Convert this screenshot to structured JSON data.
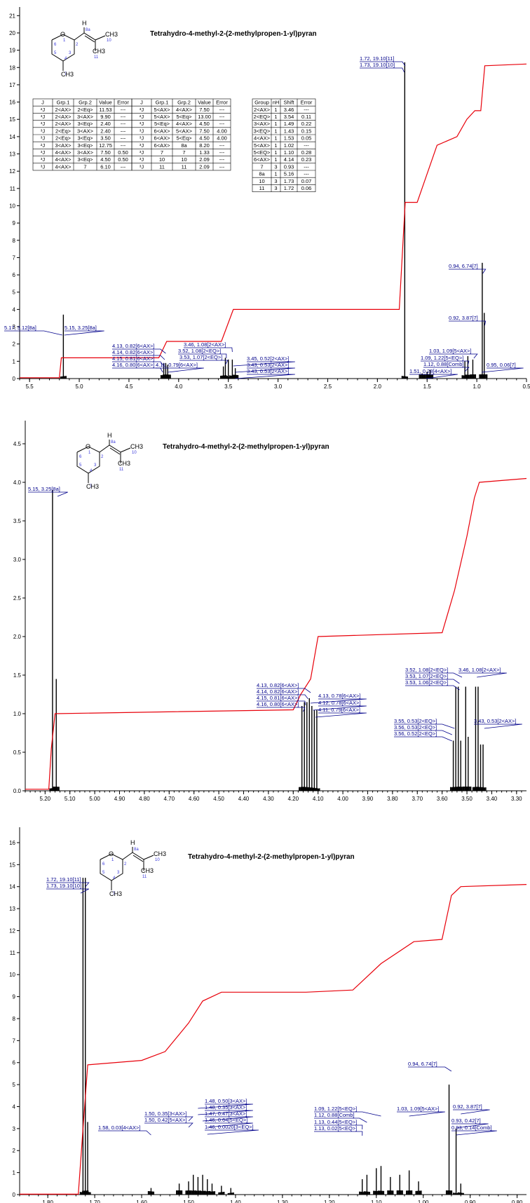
{
  "compound_name": "Tetrahydro-4-methyl-2-(2-methylpropen-1-yl)pyran",
  "molecule": {
    "atom_labels": [
      "O",
      "1",
      "2",
      "3",
      "4",
      "5",
      "6",
      "7",
      "8a",
      "10",
      "11"
    ],
    "group_labels": [
      "H",
      "CH3",
      "CH3",
      "CH3"
    ]
  },
  "chart_data": [
    {
      "type": "line",
      "title": "Tetrahydro-4-methyl-2-(2-methylpropen-1-yl)pyran",
      "xlabel": "",
      "ylabel": "",
      "xlim": [
        5.6,
        0.5
      ],
      "ylim": [
        0,
        21.5
      ],
      "x_ticks": [
        "5.5",
        "5.0",
        "4.5",
        "4.0",
        "3.5",
        "3.0",
        "2.5",
        "2.0",
        "1.5",
        "1.0",
        "0.5"
      ],
      "y_ticks": [
        "0",
        "1",
        "2",
        "3",
        "4",
        "5",
        "6",
        "7",
        "8",
        "9",
        "10",
        "11",
        "12",
        "13",
        "14",
        "15",
        "16",
        "17",
        "18",
        "19",
        "20",
        "21"
      ],
      "peaks": [
        {
          "x": 5.16,
          "h": 3.7
        },
        {
          "x": 4.15,
          "h": 0.9
        },
        {
          "x": 4.13,
          "h": 0.9
        },
        {
          "x": 4.11,
          "h": 0.8
        },
        {
          "x": 3.55,
          "h": 0.7
        },
        {
          "x": 3.53,
          "h": 1.2
        },
        {
          "x": 3.5,
          "h": 1.1
        },
        {
          "x": 3.46,
          "h": 1.1
        },
        {
          "x": 3.43,
          "h": 0.6
        },
        {
          "x": 1.55,
          "h": 0.3
        },
        {
          "x": 1.5,
          "h": 0.4
        },
        {
          "x": 1.47,
          "h": 0.5
        },
        {
          "x": 1.725,
          "h": 18.3
        },
        {
          "x": 1.12,
          "h": 1.0
        },
        {
          "x": 1.09,
          "h": 1.3
        },
        {
          "x": 1.04,
          "h": 1.1
        },
        {
          "x": 0.945,
          "h": 6.7
        },
        {
          "x": 0.925,
          "h": 3.8
        }
      ],
      "integral": [
        [
          5.6,
          0.05
        ],
        [
          5.2,
          0.05
        ],
        [
          5.18,
          1.2
        ],
        [
          4.2,
          1.2
        ],
        [
          4.12,
          2.15
        ],
        [
          3.57,
          2.15
        ],
        [
          3.45,
          4.0
        ],
        [
          1.78,
          4.0
        ],
        [
          1.72,
          10.2
        ],
        [
          1.6,
          10.2
        ],
        [
          1.4,
          13.5
        ],
        [
          1.2,
          14.0
        ],
        [
          1.1,
          15.0
        ],
        [
          1.02,
          15.5
        ],
        [
          0.96,
          15.5
        ],
        [
          0.92,
          18.1
        ],
        [
          0.5,
          18.2
        ]
      ],
      "annotations": [
        {
          "text": "1.72, 19.10[11]",
          "x": 1.72
        },
        {
          "text": "1.73, 19.10[10]",
          "x": 1.73
        },
        {
          "text": "5.17, 3.12[8a]",
          "x": 5.17
        },
        {
          "text": "5.15, 3.25[8a]",
          "x": 5.15
        },
        {
          "text": "4.13, 0.82[6<AX>]",
          "x": 4.13
        },
        {
          "text": "4.14, 0.82[6<AX>]",
          "x": 4.14
        },
        {
          "text": "4.15, 0.81[6<AX>]",
          "x": 4.15
        },
        {
          "text": "4.16, 0.80[6<AX>]",
          "x": 4.16
        },
        {
          "text": "4.11, 0.79[6<AX>]",
          "x": 4.11
        },
        {
          "text": "3.46, 1.08[2<AX>]",
          "x": 3.46
        },
        {
          "text": "3.52, 1.08[2<EQ>]",
          "x": 3.52
        },
        {
          "text": "3.53, 1.07[2<EQ>]",
          "x": 3.53
        },
        {
          "text": "3.45, 0.52[2<AX>]",
          "x": 3.45
        },
        {
          "text": "3.43, 0.53[2<AX>]",
          "x": 3.43
        },
        {
          "text": "3.43, 0.53[2<AX>]",
          "x": 3.43
        },
        {
          "text": "0.94, 6.74[7]",
          "x": 0.94
        },
        {
          "text": "0.92, 3.87[7]",
          "x": 0.92
        },
        {
          "text": "1.03, 1.09[5<AX>]",
          "x": 1.03
        },
        {
          "text": "1.09, 1.22[5<EQ>]",
          "x": 1.09
        },
        {
          "text": "1.12, 0.88[Comb]",
          "x": 1.12
        },
        {
          "text": "1.51, 0.28[4<AX>]",
          "x": 1.51
        },
        {
          "text": "0.95, 0.06[7]",
          "x": 0.95
        }
      ],
      "coupling_table_1": {
        "headers": [
          "J",
          "Grp.1",
          "Grp.2",
          "Value",
          "Error"
        ],
        "rows": [
          [
            "²J",
            "2<AX>",
            "2<Eq>",
            "11.53",
            "---"
          ],
          [
            "³J",
            "2<AX>",
            "3<AX>",
            "9.90",
            "---"
          ],
          [
            "³J",
            "2<AX>",
            "3<Eq>",
            "2.40",
            "---"
          ],
          [
            "³J",
            "2<Eq>",
            "3<AX>",
            "2.40",
            "---"
          ],
          [
            "³J",
            "2<Eq>",
            "3<Eq>",
            "3.50",
            "---"
          ],
          [
            "²J",
            "3<AX>",
            "3<Eq>",
            "12.75",
            "---"
          ],
          [
            "³J",
            "4<AX>",
            "3<AX>",
            "7.50",
            "0.50"
          ],
          [
            "³J",
            "4<AX>",
            "3<Eq>",
            "4.50",
            "0.50"
          ],
          [
            "³J",
            "4<AX>",
            "7",
            "6.10",
            "---"
          ]
        ]
      },
      "coupling_table_2": {
        "headers": [
          "J",
          "Grp.1",
          "Grp.2",
          "Value",
          "Error"
        ],
        "rows": [
          [
            "³J",
            "5<AX>",
            "4<AX>",
            "7.50",
            "---"
          ],
          [
            "²J",
            "5<AX>",
            "5<Eq>",
            "13.00",
            "---"
          ],
          [
            "³J",
            "5<Eq>",
            "4<AX>",
            "4.50",
            "---"
          ],
          [
            "³J",
            "6<AX>",
            "5<AX>",
            "7.50",
            "4.00"
          ],
          [
            "³J",
            "6<AX>",
            "5<Eq>",
            "4.50",
            "4.00"
          ],
          [
            "³J",
            "6<AX>",
            "8a",
            "8.20",
            "---"
          ],
          [
            "³J",
            "7",
            "7",
            "1.33",
            "---"
          ],
          [
            "³J",
            "10",
            "10",
            "2.09",
            "---"
          ],
          [
            "³J",
            "11",
            "11",
            "2.09",
            "---"
          ]
        ]
      },
      "shift_table": {
        "headers": [
          "Group",
          "nH",
          "Shift",
          "Error"
        ],
        "rows": [
          [
            "2<AX>",
            "1",
            "3.46",
            "---"
          ],
          [
            "2<EQ>",
            "1",
            "3.54",
            "0.11"
          ],
          [
            "3<AX>",
            "1",
            "1.49",
            "0.22"
          ],
          [
            "3<EQ>",
            "1",
            "1.43",
            "0.15"
          ],
          [
            "4<AX>",
            "1",
            "1.53",
            "0.05"
          ],
          [
            "5<AX>",
            "1",
            "1.02",
            "---"
          ],
          [
            "5<EQ>",
            "1",
            "1.10",
            "0.28"
          ],
          [
            "6<AX>",
            "1",
            "4.14",
            "0.23"
          ],
          [
            "7",
            "3",
            "0.93",
            "---"
          ],
          [
            "8a",
            "1",
            "5.16",
            "---"
          ],
          [
            "10",
            "3",
            "1.73",
            "0.07"
          ],
          [
            "11",
            "3",
            "1.72",
            "0.06"
          ]
        ]
      }
    },
    {
      "type": "line",
      "title": "Tetrahydro-4-methyl-2-(2-methylpropen-1-yl)pyran",
      "xlabel": "",
      "ylabel": "",
      "xlim": [
        5.28,
        3.26
      ],
      "ylim": [
        0,
        4.8
      ],
      "x_ticks": [
        "5.20",
        "5.10",
        "5.00",
        "4.90",
        "4.80",
        "4.70",
        "4.60",
        "4.50",
        "4.40",
        "4.30",
        "4.20",
        "4.10",
        "4.00",
        "3.90",
        "3.80",
        "3.70",
        "3.60",
        "3.50",
        "3.40",
        "3.30"
      ],
      "y_ticks": [
        "0.0",
        "0.5",
        "1.0",
        "1.5",
        "2.0",
        "2.5",
        "3.0",
        "3.5",
        "4.0",
        "4.5"
      ],
      "peaks": [
        {
          "x": 5.17,
          "h": 3.9
        },
        {
          "x": 5.155,
          "h": 1.45
        },
        {
          "x": 4.165,
          "h": 1.1
        },
        {
          "x": 4.155,
          "h": 1.15
        },
        {
          "x": 4.145,
          "h": 1.15
        },
        {
          "x": 4.135,
          "h": 1.2
        },
        {
          "x": 4.125,
          "h": 1.1
        },
        {
          "x": 4.115,
          "h": 1.05
        },
        {
          "x": 4.105,
          "h": 1.05
        },
        {
          "x": 3.555,
          "h": 0.65
        },
        {
          "x": 3.545,
          "h": 1.35
        },
        {
          "x": 3.535,
          "h": 1.35
        },
        {
          "x": 3.525,
          "h": 0.65
        },
        {
          "x": 3.505,
          "h": 1.35
        },
        {
          "x": 3.495,
          "h": 0.7
        },
        {
          "x": 3.465,
          "h": 1.35
        },
        {
          "x": 3.455,
          "h": 1.35
        },
        {
          "x": 3.445,
          "h": 0.6
        },
        {
          "x": 3.435,
          "h": 0.6
        }
      ],
      "integral": [
        [
          5.28,
          0.02
        ],
        [
          5.185,
          0.02
        ],
        [
          5.175,
          0.55
        ],
        [
          5.16,
          1.0
        ],
        [
          4.2,
          1.05
        ],
        [
          4.17,
          1.25
        ],
        [
          4.13,
          1.45
        ],
        [
          4.1,
          2.0
        ],
        [
          3.6,
          2.05
        ],
        [
          3.55,
          2.6
        ],
        [
          3.5,
          3.3
        ],
        [
          3.47,
          3.8
        ],
        [
          3.45,
          4.0
        ],
        [
          3.26,
          4.05
        ]
      ],
      "annotations": [
        {
          "text": "5.15, 3.25[8a]",
          "x": 5.15
        },
        {
          "text": "4.13, 0.82[6<AX>]",
          "x": 4.13
        },
        {
          "text": "4.14, 0.82[6<AX>]",
          "x": 4.14
        },
        {
          "text": "4.15, 0.81[6<AX>]",
          "x": 4.15
        },
        {
          "text": "4.16, 0.80[6<AX>]",
          "x": 4.16
        },
        {
          "text": "4.13, 0.78[6<AX>]",
          "x": 4.13
        },
        {
          "text": "4.12, 0.78[6<AX>]",
          "x": 4.12
        },
        {
          "text": "4.11, 0.79[6<AX>]",
          "x": 4.11
        },
        {
          "text": "3.52, 1.08[2<EQ>]",
          "x": 3.52
        },
        {
          "text": "3.53, 1.07[2<EQ>]",
          "x": 3.53
        },
        {
          "text": "3.53, 1.06[2<EQ>]",
          "x": 3.53
        },
        {
          "text": "3.46, 1.08[2<AX>]",
          "x": 3.46
        },
        {
          "text": "3.55, 0.53[2<EQ>]",
          "x": 3.55
        },
        {
          "text": "3.56, 0.53[2<EQ>]",
          "x": 3.56
        },
        {
          "text": "3.56, 0.52[2<EQ>]",
          "x": 3.56
        },
        {
          "text": "3.43, 0.53[2<AX>]",
          "x": 3.43
        }
      ]
    },
    {
      "type": "line",
      "title": "Tetrahydro-4-methyl-2-(2-methylpropen-1-yl)pyran",
      "xlabel": "",
      "ylabel": "",
      "xlim": [
        1.86,
        0.78
      ],
      "ylim": [
        0,
        16.7
      ],
      "x_ticks": [
        "1.80",
        "1.70",
        "1.60",
        "1.50",
        "1.40",
        "1.30",
        "1.20",
        "1.10",
        "1.00",
        "0.90",
        "0.80"
      ],
      "y_ticks": [
        "0",
        "1",
        "2",
        "3",
        "4",
        "5",
        "6",
        "7",
        "8",
        "9",
        "10",
        "11",
        "12",
        "13",
        "14",
        "15",
        "16"
      ],
      "peaks": [
        {
          "x": 1.725,
          "h": 14.4
        },
        {
          "x": 1.72,
          "h": 14.4
        },
        {
          "x": 1.715,
          "h": 3.3
        },
        {
          "x": 1.58,
          "h": 0.3
        },
        {
          "x": 1.52,
          "h": 0.5
        },
        {
          "x": 1.5,
          "h": 0.6
        },
        {
          "x": 1.49,
          "h": 0.9
        },
        {
          "x": 1.48,
          "h": 0.8
        },
        {
          "x": 1.47,
          "h": 0.9
        },
        {
          "x": 1.46,
          "h": 0.7
        },
        {
          "x": 1.45,
          "h": 0.5
        },
        {
          "x": 1.43,
          "h": 0.4
        },
        {
          "x": 1.41,
          "h": 0.3
        },
        {
          "x": 1.13,
          "h": 0.7
        },
        {
          "x": 1.12,
          "h": 0.9
        },
        {
          "x": 1.1,
          "h": 1.2
        },
        {
          "x": 1.09,
          "h": 1.3
        },
        {
          "x": 1.07,
          "h": 0.8
        },
        {
          "x": 1.05,
          "h": 0.9
        },
        {
          "x": 1.03,
          "h": 1.1
        },
        {
          "x": 1.01,
          "h": 0.6
        },
        {
          "x": 0.945,
          "h": 5.0
        },
        {
          "x": 0.93,
          "h": 3.0
        },
        {
          "x": 0.92,
          "h": 0.5
        }
      ],
      "integral": [
        [
          1.86,
          0.02
        ],
        [
          1.735,
          0.02
        ],
        [
          1.725,
          3.0
        ],
        [
          1.715,
          5.9
        ],
        [
          1.6,
          6.1
        ],
        [
          1.55,
          6.5
        ],
        [
          1.5,
          7.8
        ],
        [
          1.47,
          8.8
        ],
        [
          1.43,
          9.2
        ],
        [
          1.25,
          9.2
        ],
        [
          1.15,
          9.3
        ],
        [
          1.09,
          10.5
        ],
        [
          1.02,
          11.5
        ],
        [
          0.96,
          11.6
        ],
        [
          0.94,
          13.6
        ],
        [
          0.92,
          14.0
        ],
        [
          0.78,
          14.1
        ]
      ],
      "annotations": [
        {
          "text": "1.72, 19.10[11]",
          "x": 1.72
        },
        {
          "text": "1.73, 19.10[10]",
          "x": 1.73
        },
        {
          "text": "1.48, 0.50[3<AX>]",
          "x": 1.48
        },
        {
          "text": "1.48, 0.35[3<AX>]",
          "x": 1.48
        },
        {
          "text": "1.47, 0.47[3<AX>]",
          "x": 1.47
        },
        {
          "text": "1.50, 0.35[3<AX>]",
          "x": 1.5
        },
        {
          "text": "1.50, 0.42[5<AX>]",
          "x": 1.5
        },
        {
          "text": "1.46, 0.64[5<EQ>]",
          "x": 1.46
        },
        {
          "text": "1.58, 0.03[4<AX>]",
          "x": 1.58
        },
        {
          "text": "1.46, 0.0020[3<EQ>]",
          "x": 1.46
        },
        {
          "text": "1.09, 1.22[5<EQ>]",
          "x": 1.09
        },
        {
          "text": "1.12, 0.88[Comb]",
          "x": 1.12
        },
        {
          "text": "1.13, 0.44[5<EQ>]",
          "x": 1.13
        },
        {
          "text": "1.13, 0.02[5<EQ>]",
          "x": 1.13
        },
        {
          "text": "1.03, 1.09[5<AX>]",
          "x": 1.03
        },
        {
          "text": "0.94, 6.74[7]",
          "x": 0.94
        },
        {
          "text": "0.92, 3.87[7]",
          "x": 0.92
        },
        {
          "text": "0.93, 0.42[7]",
          "x": 0.93
        },
        {
          "text": "0.93, 0.14[Comb]",
          "x": 0.93
        }
      ]
    }
  ]
}
